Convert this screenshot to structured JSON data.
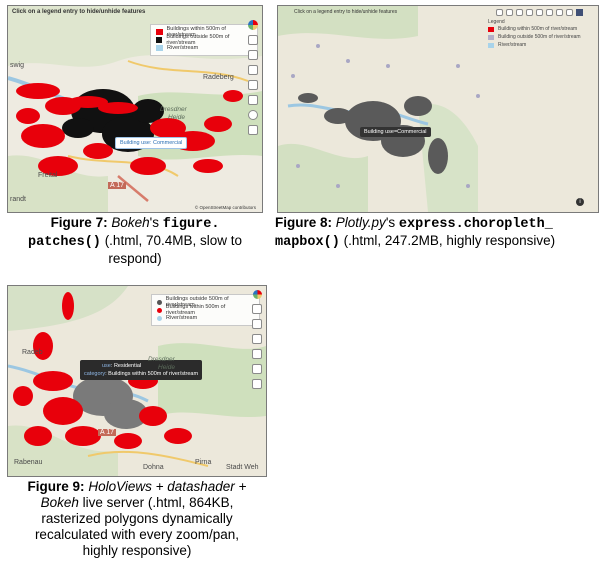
{
  "fig7": {
    "note": "Click on a legend entry to hide/unhide features",
    "legend": [
      {
        "label": "Buildings within 500m of river/stream",
        "color": "#e8000b"
      },
      {
        "label": "Buildings outside 500m of river/stream",
        "color": "#111111"
      },
      {
        "label": "River/stream",
        "color": "#a8d3ea"
      }
    ],
    "tooltip": "Building use: Commercial",
    "places": {
      "a": "swig",
      "b": "Radeberg",
      "c": "Dresdner",
      "d": "Heide",
      "e": "Freital",
      "f": "randt",
      "g": "A 17"
    },
    "attribution": "© OpenStreetMap contributors",
    "caption": {
      "label": "Figure 7:",
      "lib": "Bokeh",
      "poss": "'s",
      "code": "figure.\npatches()",
      "detail": "(.html, 70.4MB, slow to\nrespond)"
    }
  },
  "fig8": {
    "note": "Click on a legend entry to hide/unhide features",
    "legend_title": "Legend",
    "legend": [
      {
        "label": "Building within 500m of river/stream",
        "color": "#e8000b"
      },
      {
        "label": "Building outside 500m of river/stream",
        "color": "#b2b0c9"
      },
      {
        "label": "River/stream",
        "color": "#a8d3ea"
      }
    ],
    "tooltip": "Building use=Commercial",
    "caption": {
      "label": "Figure 8:",
      "lib": "Plotly.py",
      "poss": "'s",
      "code": "express.choropleth_\nmapbox()",
      "detail": "(.html, 247.2MB, highly responsive)"
    }
  },
  "fig9": {
    "legend": [
      {
        "label": "Buildings outside 500m of river/stream",
        "color": "#555555"
      },
      {
        "label": "Buildings within 500m of river/stream",
        "color": "#e8000b"
      },
      {
        "label": "River/stream",
        "color": "#a8d3ea"
      }
    ],
    "tooltip": {
      "l1k": "use",
      "l1v": "Residential",
      "l2k": "category",
      "l2v": "Buildings within 500m of river/stream"
    },
    "places": {
      "a": "Radeb",
      "b": "Dresdner",
      "c": "Heide",
      "d": "A 17",
      "e": "Rabenau",
      "f": "Dohna",
      "g": "Pirna",
      "h": "Stadt Weh"
    },
    "caption": {
      "label": "Figure 9:",
      "l1": "HoloViews + datashader +",
      "l2": "Bokeh",
      "l2b": "live server (.html, 864KB,",
      "l3": "rasterized polygons dynamically",
      "l4": "recalculated with every zoom/pan,",
      "l5": "highly responsive)"
    }
  }
}
